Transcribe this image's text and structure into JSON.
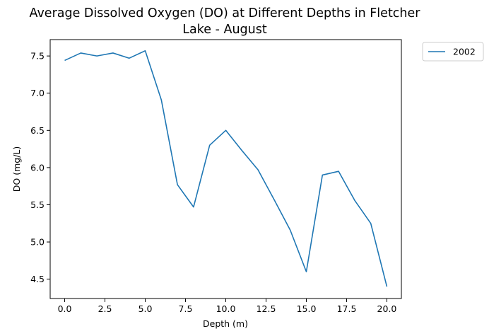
{
  "chart_data": {
    "type": "line",
    "title_lines": [
      "Average Dissolved Oxygen (DO) at Different Depths in Fletcher",
      "Lake - August"
    ],
    "xlabel": "Depth (m)",
    "ylabel": "DO (mg/L)",
    "xlim": [
      -0.9,
      20.9
    ],
    "ylim": [
      4.24,
      7.72
    ],
    "x_ticks": [
      0.0,
      2.5,
      5.0,
      7.5,
      10.0,
      12.5,
      15.0,
      17.5,
      20.0
    ],
    "x_tick_labels": [
      "0.0",
      "2.5",
      "5.0",
      "7.5",
      "10.0",
      "12.5",
      "15.0",
      "17.5",
      "20.0"
    ],
    "y_ticks": [
      4.5,
      5.0,
      5.5,
      6.0,
      6.5,
      7.0,
      7.5
    ],
    "y_tick_labels": [
      "4.5",
      "5.0",
      "5.5",
      "6.0",
      "6.5",
      "7.0",
      "7.5"
    ],
    "grid": false,
    "legend_placement": "outside-top-right",
    "series": [
      {
        "name": "2002",
        "color": "#1f77b4",
        "x": [
          0,
          1,
          2,
          3,
          4,
          5,
          6,
          7,
          8,
          9,
          10,
          11,
          12,
          13,
          14,
          15,
          16,
          17,
          18,
          19,
          20
        ],
        "y": [
          7.44,
          7.54,
          7.5,
          7.54,
          7.47,
          7.57,
          6.91,
          5.77,
          5.47,
          6.3,
          6.5,
          6.23,
          5.97,
          5.57,
          5.16,
          4.6,
          5.9,
          5.95,
          5.56,
          5.25,
          4.4
        ]
      }
    ]
  }
}
